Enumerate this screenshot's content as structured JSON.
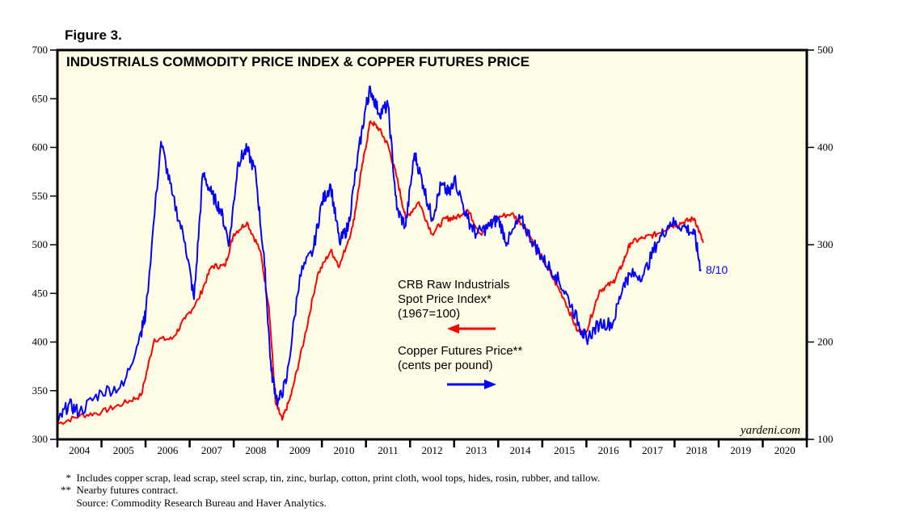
{
  "figure_label": "Figure 3.",
  "chart_data": {
    "type": "line",
    "title": "INDUSTRIALS COMMODITY PRICE INDEX & COPPER FUTURES PRICE",
    "xlim": [
      2004,
      2021
    ],
    "x_tick_labels": [
      "2004",
      "2005",
      "2006",
      "2007",
      "2008",
      "2009",
      "2010",
      "2011",
      "2012",
      "2013",
      "2014",
      "2015",
      "2016",
      "2017",
      "2018",
      "2019",
      "2020"
    ],
    "left_axis": {
      "ylim": [
        300,
        700
      ],
      "ticks": [
        300,
        350,
        400,
        450,
        500,
        550,
        600,
        650,
        700
      ]
    },
    "right_axis": {
      "ylim": [
        100,
        500
      ],
      "ticks": [
        100,
        200,
        300,
        400,
        500
      ]
    },
    "grid": false,
    "background": "#fffde6",
    "series": [
      {
        "name": "CRB Raw Industrials Spot Price Index* (1967=100)",
        "axis": "left",
        "color": "#ff0000",
        "x": [
          2004.0,
          2004.5,
          2005.0,
          2005.5,
          2005.9,
          2006.2,
          2006.6,
          2006.9,
          2007.2,
          2007.5,
          2007.8,
          2008.0,
          2008.3,
          2008.6,
          2008.8,
          2008.95,
          2009.1,
          2009.3,
          2009.6,
          2009.9,
          2010.2,
          2010.4,
          2010.7,
          2010.9,
          2011.1,
          2011.3,
          2011.5,
          2011.7,
          2011.9,
          2012.2,
          2012.5,
          2012.8,
          2013.0,
          2013.3,
          2013.6,
          2013.9,
          2014.3,
          2014.6,
          2014.9,
          2015.2,
          2015.5,
          2015.8,
          2016.0,
          2016.3,
          2016.6,
          2016.8,
          2017.0,
          2017.3,
          2017.6,
          2017.9,
          2018.2,
          2018.45,
          2018.65
        ],
        "y": [
          316,
          324,
          328,
          337,
          345,
          403,
          403,
          424,
          444,
          478,
          478,
          511,
          523,
          494,
          436,
          337,
          320,
          345,
          403,
          469,
          494,
          478,
          519,
          577,
          627,
          619,
          602,
          569,
          527,
          544,
          511,
          527,
          527,
          536,
          511,
          527,
          532,
          519,
          494,
          469,
          444,
          411,
          411,
          453,
          461,
          478,
          502,
          507,
          511,
          519,
          523,
          527,
          502
        ]
      },
      {
        "name": "Copper Futures Price** (cents per pound)",
        "axis": "right",
        "color": "#0000ff",
        "x": [
          2004.0,
          2004.25,
          2004.5,
          2005.0,
          2005.5,
          2005.9,
          2006.0,
          2006.35,
          2006.6,
          2006.9,
          2007.1,
          2007.3,
          2007.5,
          2007.7,
          2007.9,
          2008.1,
          2008.3,
          2008.5,
          2008.7,
          2008.85,
          2009.0,
          2009.2,
          2009.5,
          2009.8,
          2010.0,
          2010.2,
          2010.4,
          2010.6,
          2010.8,
          2011.0,
          2011.1,
          2011.3,
          2011.5,
          2011.7,
          2011.9,
          2012.1,
          2012.3,
          2012.5,
          2012.7,
          2012.9,
          2013.0,
          2013.3,
          2013.5,
          2013.8,
          2014.0,
          2014.2,
          2014.5,
          2014.8,
          2015.0,
          2015.3,
          2015.6,
          2015.9,
          2016.0,
          2016.3,
          2016.6,
          2016.85,
          2017.0,
          2017.3,
          2017.6,
          2017.9,
          2018.2,
          2018.45,
          2018.6
        ],
        "y": [
          116,
          136,
          128,
          149,
          155,
          211,
          228,
          406,
          352,
          302,
          244,
          373,
          352,
          336,
          302,
          385,
          398,
          373,
          278,
          170,
          137,
          161,
          269,
          294,
          344,
          361,
          302,
          319,
          385,
          443,
          460,
          435,
          443,
          336,
          319,
          394,
          361,
          327,
          361,
          352,
          369,
          327,
          311,
          319,
          327,
          302,
          327,
          302,
          286,
          269,
          244,
          211,
          203,
          219,
          219,
          261,
          269,
          269,
          302,
          323,
          319,
          311,
          273
        ]
      }
    ],
    "legend": {
      "red_lines": [
        "CRB Raw Industrials",
        "Spot Price Index*",
        "(1967=100)"
      ],
      "blue_lines": [
        "Copper Futures Price**",
        "(cents per pound)"
      ]
    },
    "annotation": "8/10",
    "watermark": "yardeni.com"
  },
  "footnotes": [
    {
      "mark": "*",
      "text": "Includes copper scrap, lead scrap, steel scrap, tin, zinc, burlap, cotton, print cloth, wool tops, hides, rosin, rubber, and tallow."
    },
    {
      "mark": "**",
      "text": "Nearby futures contract."
    },
    {
      "mark": "",
      "text": "Source: Commodity Research Bureau and Haver Analytics."
    }
  ]
}
